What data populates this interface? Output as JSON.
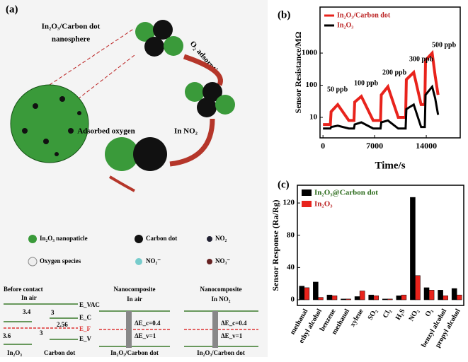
{
  "panels": [
    "(a)",
    "(b)",
    "(c)"
  ],
  "diagram": {
    "nanosphere_label": [
      "In₂O₃/Carbon dot",
      "nanosphere"
    ],
    "steps": [
      "O₂ adsorption",
      "Adsorbed oxygen",
      "In NO₂"
    ],
    "legend": [
      "In₂O₃ nanopaticle",
      "Carbon dot",
      "NO₂",
      "Oxygen species",
      "NO₂⁻",
      "NO₃⁻"
    ],
    "bands": {
      "before": [
        "Before contact",
        "In air",
        "E_VAC",
        "3.4",
        "E_C",
        "3",
        "2.56",
        "E_F",
        "E_V",
        "3.6",
        "3",
        "In₂O₃",
        "Carbon dot"
      ],
      "air": [
        "Nanocomposite",
        "In air",
        "ΔE_c=0.4",
        "ΔE_v=1",
        "In₂O₃/Carbon dot"
      ],
      "no2": [
        "Nanocomposite",
        "In NO₂",
        "ΔE_c=0.4",
        "ΔE_v=1",
        "In₂O₃/Carbon dot"
      ]
    }
  },
  "chart_data": [
    {
      "type": "line",
      "ylabel": "Sensor Resistance/MΩ",
      "xlabel": "Time/s",
      "log_y": true,
      "x": [
        0,
        1000,
        1100,
        2000,
        3500,
        4200,
        4300,
        5200,
        6800,
        7800,
        7900,
        8800,
        10200,
        11200,
        11300,
        12300,
        13300,
        13800,
        13900,
        14800,
        15200,
        15600
      ],
      "series": [
        {
          "name": "In₂O₃/Carbon dot",
          "color": "#e8231c",
          "values": [
            6,
            6,
            15,
            25,
            8,
            8,
            30,
            45,
            8,
            8,
            50,
            90,
            10,
            10,
            150,
            250,
            25,
            25,
            600,
            1000,
            200,
            50
          ]
        },
        {
          "name": "In₂O₃",
          "color": "#000000",
          "values": [
            4.5,
            4.5,
            5,
            5.5,
            4.5,
            4.5,
            6,
            7,
            4.5,
            4.5,
            7,
            8,
            4.5,
            4.5,
            18,
            25,
            5,
            5,
            50,
            90,
            40,
            12
          ]
        }
      ],
      "annotations": [
        "50 ppb",
        "100 ppb",
        "200 ppb",
        "300 ppb",
        "500 ppb"
      ],
      "xlim": [
        -400,
        18600
      ],
      "xticks": [
        0,
        7000,
        14000
      ],
      "ylim": [
        2.3,
        27000
      ],
      "yticks": [
        10,
        100,
        1000
      ]
    },
    {
      "type": "bar",
      "ylabel": "Sensor Response (Ra/Rg)",
      "categories": [
        "methanal",
        "ethyl alcohol",
        "benzene",
        "methanol",
        "xylene",
        "SO₂",
        "Cl₂",
        "H₂S",
        "NO₂",
        "O₃",
        "benzyl alcohol",
        "propyl alcohol"
      ],
      "series": [
        {
          "name": "In₂O₃@Carbon dot",
          "color": "#000000",
          "values": [
            17,
            22,
            6,
            1,
            4,
            6,
            1,
            5,
            127,
            15,
            12,
            14
          ]
        },
        {
          "name": "In₂O₃",
          "color": "#e8231c",
          "values": [
            15,
            3,
            5,
            1,
            11,
            5,
            1,
            6,
            30,
            12,
            5,
            6
          ]
        }
      ],
      "ylim": [
        -7,
        142
      ],
      "yticks": [
        0,
        40,
        80,
        120
      ]
    }
  ]
}
